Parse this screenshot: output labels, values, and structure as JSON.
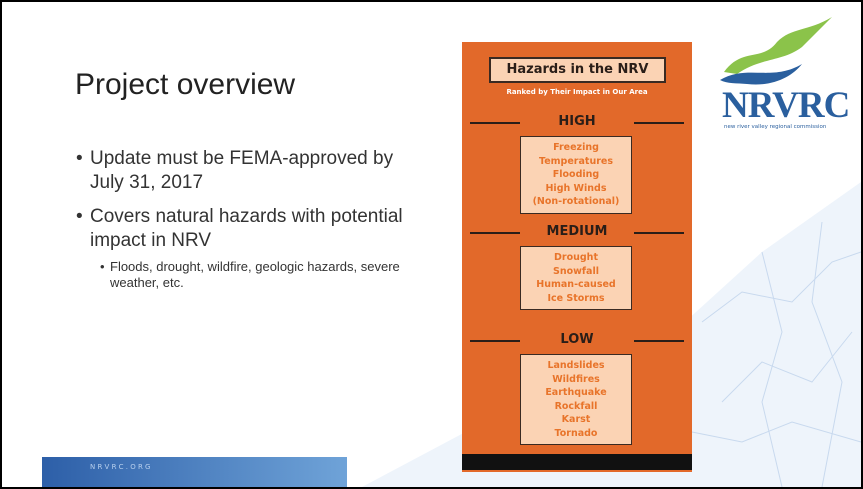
{
  "slide": {
    "title": "Project overview",
    "bullets": [
      {
        "text": "Update must be FEMA-approved by July 31, 2017"
      },
      {
        "text": "Covers natural hazards with potential impact in NRV",
        "sub": [
          "Floods, drought, wildfire, geologic hazards, severe weather, etc."
        ]
      }
    ]
  },
  "infographic": {
    "title": "Hazards in the NRV",
    "subtitle": "Ranked by Their Impact in Our Area",
    "levels": [
      {
        "name": "HIGH",
        "items": [
          "Freezing",
          "Temperatures",
          "Flooding",
          "High Winds",
          "(Non-rotational)"
        ]
      },
      {
        "name": "MEDIUM",
        "items": [
          "Drought",
          "Snowfall",
          "Human-caused",
          "Ice Storms"
        ]
      },
      {
        "name": "LOW",
        "items": [
          "Landslides",
          "Wildfires",
          "Earthquake",
          "Rockfall",
          "Karst",
          "Tornado"
        ]
      }
    ]
  },
  "logo": {
    "name": "NRVRC",
    "tagline": "new river valley regional commission"
  },
  "footer": "N R V R C . O R G"
}
